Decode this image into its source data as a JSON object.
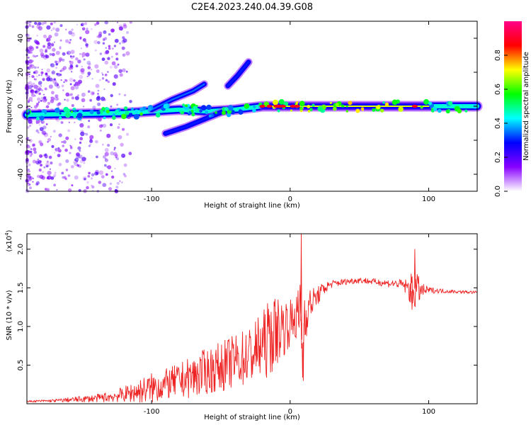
{
  "title": "C2E4.2023.240.04.39.G08",
  "chart_data": [
    {
      "type": "heatmap",
      "name": "spectrogram",
      "xlabel": "Height of straight line (km)",
      "ylabel": "Frequency (Hz)",
      "xlim": [
        -190,
        135
      ],
      "ylim": [
        -50,
        50
      ],
      "xticks": [
        -100,
        0,
        100
      ],
      "yticks": [
        -40,
        -20,
        0,
        20,
        40
      ],
      "colorbar": {
        "label": "Normalized spectral amplitude",
        "range": [
          0,
          1
        ],
        "ticks": [
          "0.0",
          "0.2",
          "0.4",
          "0.6",
          "0.8"
        ],
        "tick_values": [
          0,
          0.2,
          0.4,
          0.6,
          0.8
        ],
        "colors": [
          "#ffffff",
          "#8800ff",
          "#0000ff",
          "#00ffff",
          "#00ff00",
          "#ffff00",
          "#ff0000",
          "#ff0088"
        ]
      },
      "features": [
        {
          "name": "main-band",
          "x": [
            -190,
            -150,
            -120,
            -100,
            -80,
            -60,
            -40,
            -20,
            0,
            20,
            60,
            100,
            135
          ],
          "y": [
            -5,
            -4.5,
            -4,
            -3,
            -2,
            -3,
            -2,
            0,
            0,
            0,
            0,
            0,
            0
          ],
          "amplitude": 0.45
        },
        {
          "name": "rising-branch-1",
          "x": [
            -100,
            -85,
            -70,
            -62
          ],
          "y": [
            -2,
            4,
            9,
            13
          ],
          "amplitude": 0.35
        },
        {
          "name": "rising-branch-2",
          "x": [
            -45,
            -38,
            -30
          ],
          "y": [
            12,
            18,
            26
          ],
          "amplitude": 0.3
        },
        {
          "name": "lower-branch",
          "x": [
            -90,
            -75,
            -60,
            -45
          ],
          "y": [
            -16,
            -12,
            -7,
            -2
          ],
          "amplitude": 0.3
        },
        {
          "name": "bright-flat-segment",
          "x": [
            -20,
            10,
            50,
            90,
            100
          ],
          "y": [
            0,
            0,
            0,
            0,
            0
          ],
          "amplitude": 0.7
        }
      ]
    },
    {
      "type": "line",
      "name": "snr",
      "xlabel": "Height of straight line (km)",
      "ylabel": "SNR (10 * v/v)",
      "multiplier": "(x10",
      "multiplier_exp": "4",
      "multiplier_close": ")",
      "xlim": [
        -190,
        135
      ],
      "ylim": [
        0,
        2.2
      ],
      "xticks": [
        -100,
        0,
        100
      ],
      "yticks": [
        0.5,
        1.0,
        1.5,
        2.0
      ],
      "ytick_labels": [
        "0.5",
        "1.0",
        "1.5",
        "2.0"
      ],
      "color": "#ee2222",
      "x": [
        -190,
        -170,
        -150,
        -140,
        -130,
        -120,
        -110,
        -100,
        -90,
        -80,
        -70,
        -60,
        -50,
        -40,
        -30,
        -20,
        -15,
        -10,
        -5,
        0,
        3,
        6,
        8,
        9,
        10,
        12,
        15,
        20,
        25,
        30,
        40,
        50,
        60,
        70,
        80,
        85,
        88,
        90,
        92,
        95,
        100,
        110,
        120,
        135
      ],
      "y": [
        0.03,
        0.04,
        0.06,
        0.07,
        0.09,
        0.12,
        0.16,
        0.2,
        0.25,
        0.3,
        0.35,
        0.42,
        0.48,
        0.55,
        0.62,
        0.75,
        0.85,
        0.95,
        1.0,
        1.05,
        1.1,
        1.15,
        1.05,
        0.5,
        1.1,
        1.2,
        1.3,
        1.4,
        1.5,
        1.55,
        1.58,
        1.6,
        1.58,
        1.56,
        1.55,
        1.5,
        1.45,
        1.5,
        1.48,
        1.46,
        1.47,
        1.46,
        1.45,
        1.44
      ],
      "noise": [
        0.01,
        0.02,
        0.04,
        0.05,
        0.07,
        0.1,
        0.15,
        0.2,
        0.2,
        0.22,
        0.28,
        0.3,
        0.32,
        0.35,
        0.38,
        0.45,
        0.5,
        0.45,
        0.4,
        0.3,
        0.3,
        0.35,
        0.7,
        0.3,
        0.5,
        0.3,
        0.2,
        0.12,
        0.08,
        0.05,
        0.04,
        0.04,
        0.04,
        0.05,
        0.06,
        0.12,
        0.25,
        0.3,
        0.2,
        0.1,
        0.04,
        0.03,
        0.02,
        0.02
      ],
      "peaks": [
        {
          "x": 8,
          "y": 2.2
        },
        {
          "x": 9.5,
          "y": 0.3
        },
        {
          "x": 90,
          "y": 2.0
        },
        {
          "x": 88,
          "y": 1.22
        }
      ]
    }
  ]
}
